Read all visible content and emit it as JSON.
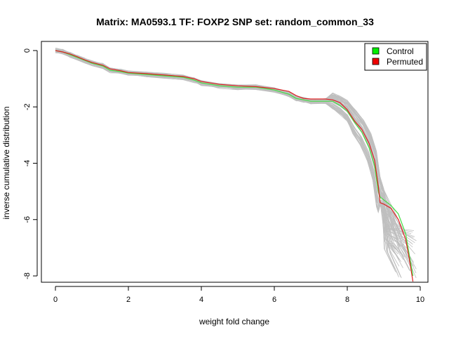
{
  "chart_data": {
    "type": "line",
    "title": "Matrix: MA0593.1 TF: FOXP2 SNP set: random_common_33",
    "xlabel": "weight fold change",
    "ylabel": "inverse cumulative distribution",
    "xlim": [
      0,
      10
    ],
    "ylim": [
      -8,
      0
    ],
    "x_ticks": [
      "0",
      "2",
      "4",
      "6",
      "8",
      "10"
    ],
    "y_ticks": [
      "0",
      "-2",
      "-4",
      "-6",
      "-8"
    ],
    "grid": false,
    "legend_position": "top-right",
    "legend": [
      {
        "label": "Control",
        "color": "#00ee00"
      },
      {
        "label": "Permuted",
        "color": "#ee0000"
      }
    ],
    "series": [
      {
        "name": "Control",
        "color": "#44dd44",
        "x": [
          0,
          0.2,
          0.4,
          0.6,
          0.8,
          1.0,
          1.3,
          1.5,
          1.8,
          2.0,
          2.5,
          3.0,
          3.5,
          3.8,
          4.0,
          4.5,
          5.0,
          5.5,
          6.0,
          6.4,
          6.6,
          6.8,
          7.0,
          7.4,
          7.6,
          7.8,
          8.0,
          8.2,
          8.4,
          8.6,
          8.75,
          8.85,
          8.9,
          9.0,
          9.2,
          9.4,
          9.6,
          9.8
        ],
        "y": [
          0,
          -0.05,
          -0.15,
          -0.25,
          -0.35,
          -0.45,
          -0.55,
          -0.7,
          -0.75,
          -0.8,
          -0.85,
          -0.9,
          -0.95,
          -1.05,
          -1.15,
          -1.25,
          -1.3,
          -1.3,
          -1.4,
          -1.55,
          -1.7,
          -1.75,
          -1.8,
          -1.8,
          -1.8,
          -1.95,
          -2.15,
          -2.55,
          -2.9,
          -3.45,
          -4.1,
          -5.0,
          -5.2,
          -5.3,
          -5.5,
          -5.8,
          -6.5,
          -8.0
        ]
      },
      {
        "name": "Permuted",
        "color": "#dd2222",
        "x": [
          0,
          0.2,
          0.4,
          0.6,
          0.8,
          1.0,
          1.3,
          1.5,
          1.8,
          2.0,
          2.5,
          3.0,
          3.5,
          3.8,
          4.0,
          4.5,
          5.0,
          5.5,
          6.0,
          6.4,
          6.6,
          6.8,
          7.0,
          7.4,
          7.6,
          7.8,
          8.0,
          8.2,
          8.4,
          8.6,
          8.75,
          8.85,
          8.9,
          9.0,
          9.2,
          9.4,
          9.6,
          9.7,
          9.8
        ],
        "y": [
          0,
          -0.05,
          -0.12,
          -0.22,
          -0.33,
          -0.42,
          -0.52,
          -0.65,
          -0.72,
          -0.78,
          -0.82,
          -0.87,
          -0.92,
          -1.0,
          -1.1,
          -1.2,
          -1.25,
          -1.28,
          -1.35,
          -1.45,
          -1.6,
          -1.7,
          -1.72,
          -1.72,
          -1.75,
          -1.85,
          -2.1,
          -2.5,
          -2.8,
          -3.3,
          -3.9,
          -4.8,
          -5.4,
          -5.45,
          -5.6,
          -6.0,
          -6.7,
          -7.4,
          -8.2
        ]
      }
    ]
  },
  "colors": {
    "background": "#ffffff",
    "axis": "#000000",
    "permutation_lines": "#bfbfbf",
    "control": "#44dd44",
    "permuted": "#dd2222",
    "legend_control_box": "#00ee00",
    "legend_permuted_box": "#ee0000"
  }
}
